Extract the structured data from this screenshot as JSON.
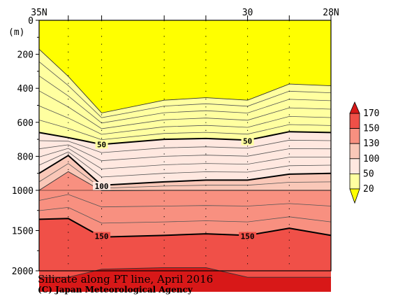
{
  "chart_data": {
    "type": "heatmap",
    "title": "Silicate along PT line, April 2016",
    "credit": "(C) Japan Meteorological Agency",
    "x_ticks": [
      {
        "label": "35N",
        "lat": 35
      },
      {
        "label": "30",
        "lat": 30
      },
      {
        "label": "28N",
        "lat": 28
      }
    ],
    "x_range": [
      35,
      28
    ],
    "y_unit_label": "(m)",
    "y_ticks": [
      0,
      200,
      400,
      600,
      800,
      1000,
      1500,
      2000
    ],
    "y_range": [
      0,
      2000
    ],
    "legend": {
      "placement": "right",
      "levels": [
        20,
        50,
        100,
        130,
        150,
        170
      ],
      "colors": [
        "#ffff00",
        "#ffffa0",
        "#ffe8e0",
        "#fac8b8",
        "#f89080",
        "#f05048",
        "#d81818"
      ]
    },
    "station_latitudes": [
      34.3,
      33.5,
      32.0,
      31.0,
      30.0,
      29.0,
      28.0
    ],
    "contour_labels": [
      {
        "text": "50",
        "lat": 33.5,
        "depth": 730
      },
      {
        "text": "50",
        "lat": 30.0,
        "depth": 710
      },
      {
        "text": "100",
        "lat": 33.5,
        "depth": 975
      },
      {
        "text": "150",
        "lat": 33.5,
        "depth": 1570
      },
      {
        "text": "150",
        "lat": 30.0,
        "depth": 1570
      }
    ]
  }
}
